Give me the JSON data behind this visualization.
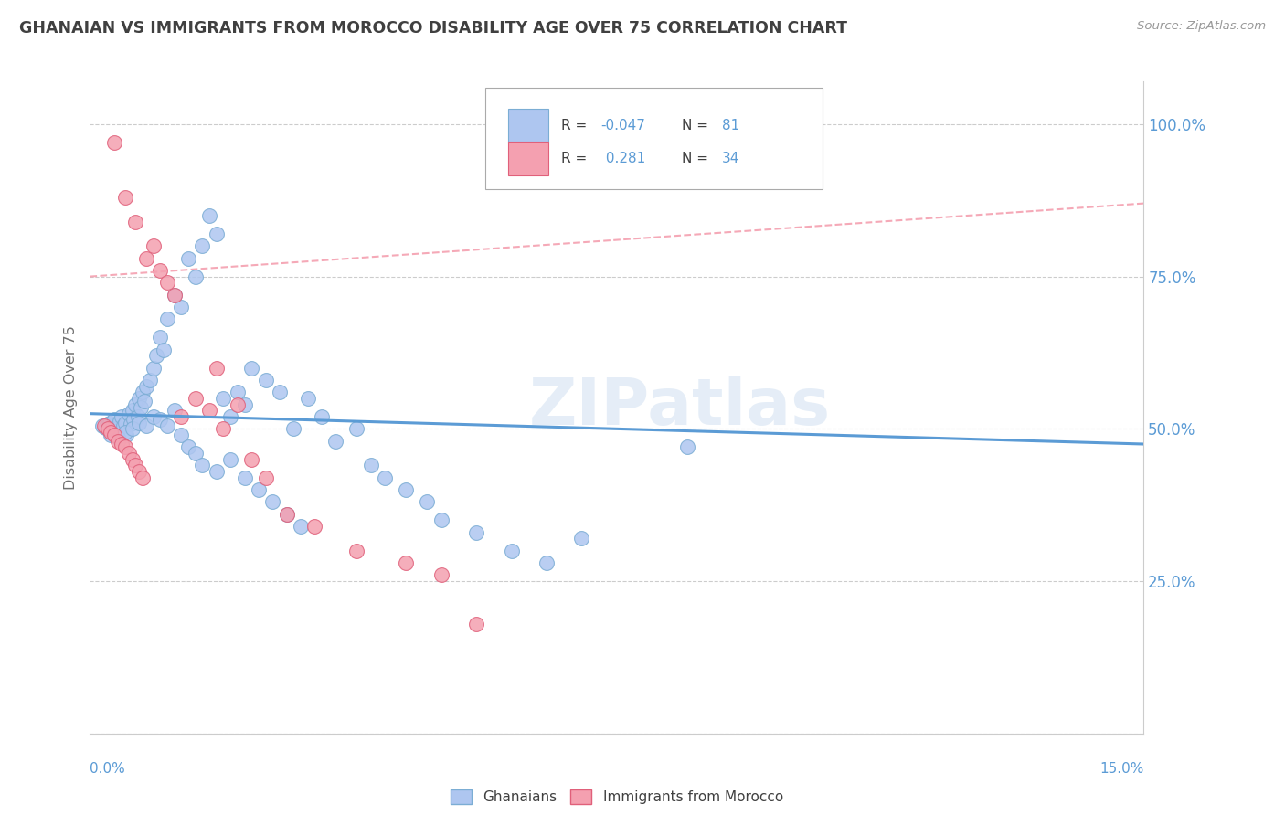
{
  "title": "GHANAIAN VS IMMIGRANTS FROM MOROCCO DISABILITY AGE OVER 75 CORRELATION CHART",
  "source": "Source: ZipAtlas.com",
  "ylabel": "Disability Age Over 75",
  "watermark": "ZIPatlas",
  "blue_color": "#5b9bd5",
  "pink_color": "#e8829a",
  "title_color": "#404040",
  "axis_label_color": "#5b9bd5",
  "background_color": "#ffffff",
  "R_blue": "-0.047",
  "N_blue": "81",
  "R_pink": "0.281",
  "N_pink": "34",
  "scatter_blue_x": [
    0.18,
    0.22,
    0.25,
    0.28,
    0.3,
    0.32,
    0.35,
    0.38,
    0.4,
    0.42,
    0.45,
    0.48,
    0.5,
    0.52,
    0.55,
    0.58,
    0.6,
    0.62,
    0.65,
    0.68,
    0.7,
    0.72,
    0.75,
    0.78,
    0.8,
    0.85,
    0.9,
    0.95,
    1.0,
    1.05,
    1.1,
    1.2,
    1.3,
    1.4,
    1.5,
    1.6,
    1.7,
    1.8,
    1.9,
    2.0,
    2.1,
    2.2,
    2.3,
    2.5,
    2.7,
    2.9,
    3.1,
    3.3,
    3.5,
    3.8,
    4.0,
    4.2,
    4.5,
    4.8,
    5.0,
    5.5,
    6.0,
    6.5,
    7.0,
    8.5,
    0.3,
    0.4,
    0.5,
    0.6,
    0.7,
    0.8,
    0.9,
    1.0,
    1.1,
    1.2,
    1.3,
    1.4,
    1.5,
    1.6,
    1.8,
    2.0,
    2.2,
    2.4,
    2.6,
    2.8,
    3.0
  ],
  "scatter_blue_y": [
    50.5,
    50.2,
    50.8,
    51.0,
    49.5,
    50.5,
    51.5,
    50.0,
    49.8,
    51.2,
    52.0,
    50.5,
    51.0,
    49.0,
    52.5,
    50.8,
    53.0,
    51.5,
    54.0,
    52.0,
    55.0,
    53.5,
    56.0,
    54.5,
    57.0,
    58.0,
    60.0,
    62.0,
    65.0,
    63.0,
    68.0,
    72.0,
    70.0,
    78.0,
    75.0,
    80.0,
    85.0,
    82.0,
    55.0,
    52.0,
    56.0,
    54.0,
    60.0,
    58.0,
    56.0,
    50.0,
    55.0,
    52.0,
    48.0,
    50.0,
    44.0,
    42.0,
    40.0,
    38.0,
    35.0,
    33.0,
    30.0,
    28.0,
    32.0,
    47.0,
    49.0,
    48.5,
    49.5,
    50.0,
    51.0,
    50.5,
    52.0,
    51.5,
    50.5,
    53.0,
    49.0,
    47.0,
    46.0,
    44.0,
    43.0,
    45.0,
    42.0,
    40.0,
    38.0,
    36.0,
    34.0
  ],
  "scatter_pink_x": [
    0.2,
    0.25,
    0.3,
    0.35,
    0.4,
    0.45,
    0.5,
    0.55,
    0.6,
    0.65,
    0.7,
    0.75,
    0.8,
    0.9,
    1.0,
    1.1,
    1.2,
    1.3,
    1.5,
    1.7,
    1.9,
    2.1,
    2.3,
    2.5,
    2.8,
    3.2,
    3.8,
    4.5,
    5.0,
    5.5,
    0.35,
    0.5,
    0.65,
    1.8
  ],
  "scatter_pink_y": [
    50.5,
    50.0,
    49.5,
    49.0,
    48.0,
    47.5,
    47.0,
    46.0,
    45.0,
    44.0,
    43.0,
    42.0,
    78.0,
    80.0,
    76.0,
    74.0,
    72.0,
    52.0,
    55.0,
    53.0,
    50.0,
    54.0,
    45.0,
    42.0,
    36.0,
    34.0,
    30.0,
    28.0,
    26.0,
    18.0,
    97.0,
    88.0,
    84.0,
    60.0
  ],
  "blue_line_x": [
    0.0,
    15.0
  ],
  "blue_line_y": [
    52.5,
    47.5
  ],
  "pink_line_x": [
    0.0,
    15.0
  ],
  "pink_line_y": [
    75.0,
    87.0
  ],
  "xmin": 0.0,
  "xmax": 15.0,
  "ymin": 0.0,
  "ymax": 107.0,
  "ytick_positions": [
    0,
    25,
    50,
    75,
    100
  ],
  "ytick_labels": [
    "",
    "25.0%",
    "50.0%",
    "75.0%",
    "100.0%"
  ],
  "xtick_positions": [
    0,
    1.5,
    3.0,
    4.5,
    6.0,
    7.5,
    9.0,
    10.5,
    12.0,
    13.5,
    15.0
  ],
  "xbottom_left_label": "0.0%",
  "xbottom_right_label": "15.0%"
}
